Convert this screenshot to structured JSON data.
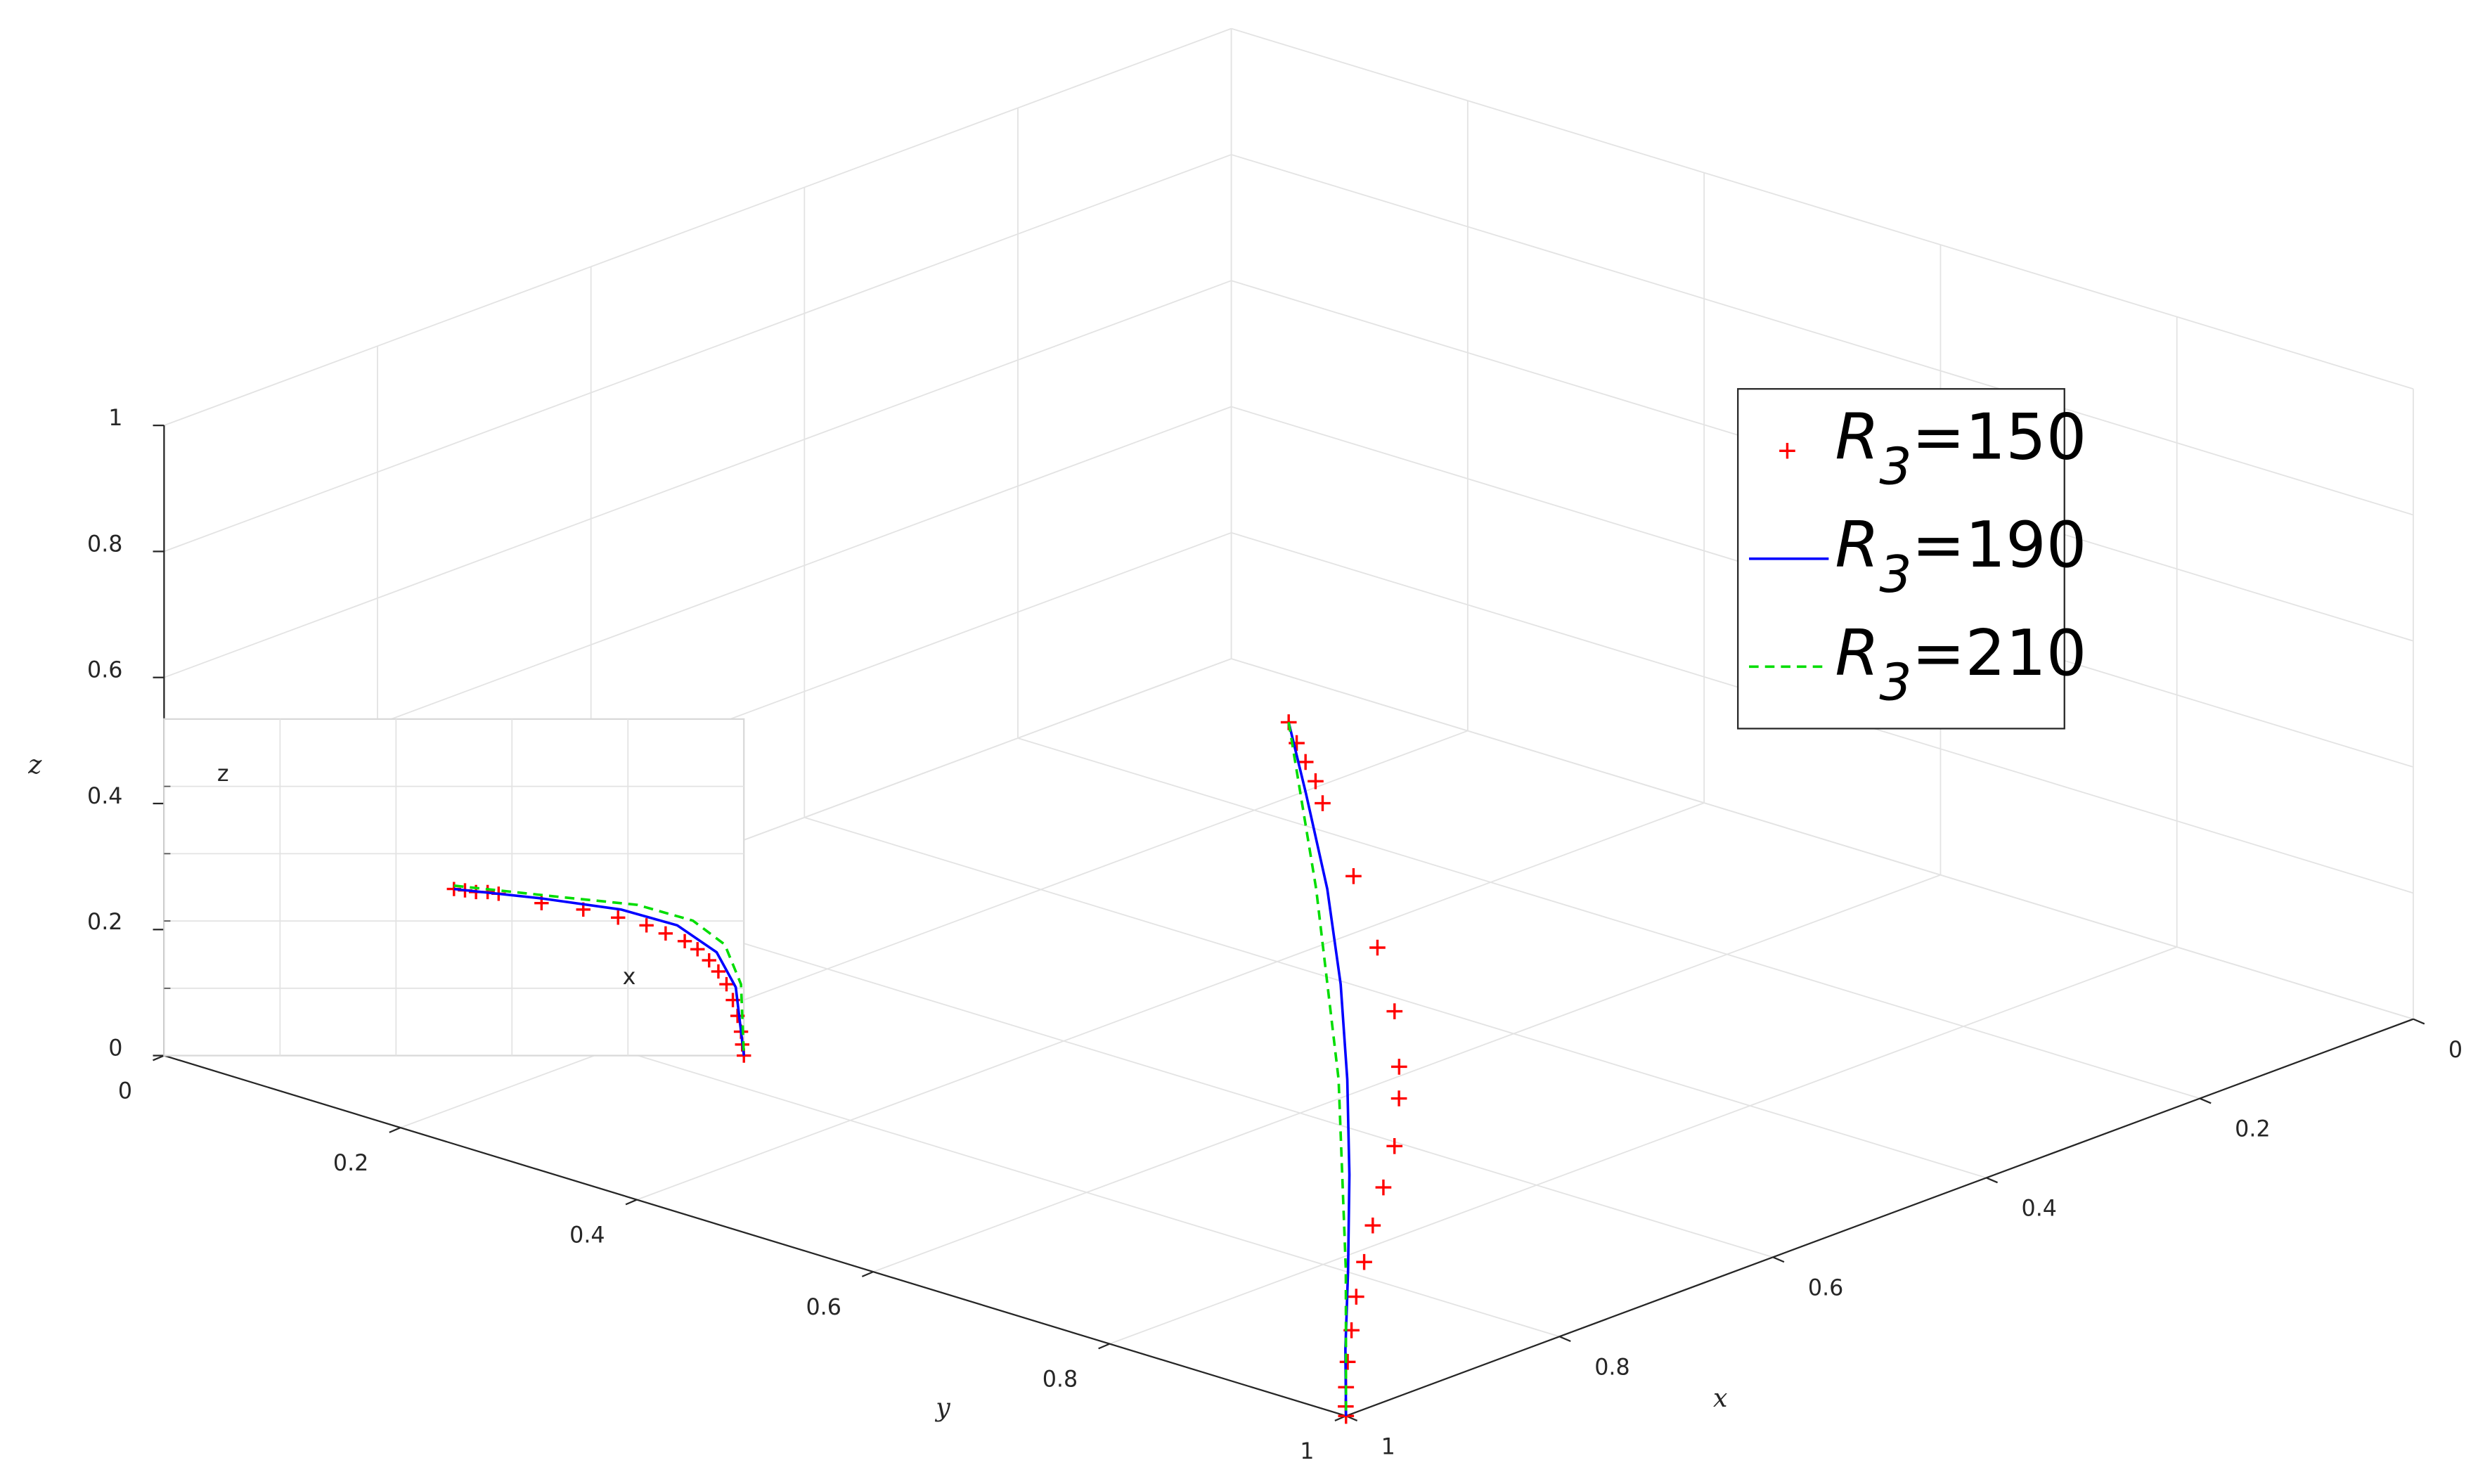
{
  "chart_data": [
    {
      "type": "line3d",
      "xlabel": "x",
      "ylabel": "y",
      "zlabel": "z",
      "xlim": [
        0,
        1
      ],
      "ylim": [
        0,
        1
      ],
      "zlim": [
        0,
        1
      ],
      "xticks": [
        0,
        0.2,
        0.4,
        0.6,
        0.8,
        1
      ],
      "yticks": [
        0,
        0.2,
        0.4,
        0.6,
        0.8,
        1
      ],
      "zticks": [
        0,
        0.2,
        0.4,
        0.6,
        0.8,
        1
      ],
      "grid": true,
      "legend": "upper right",
      "series": [
        {
          "name": "R3=150",
          "color": "#ff0000",
          "marker": "+",
          "linestyle": "none",
          "x": [
            0.5,
            0.508,
            0.513,
            0.518,
            0.528,
            0.581,
            0.635,
            0.681,
            0.721,
            0.73,
            0.763,
            0.79,
            0.821,
            0.849,
            0.883,
            0.914,
            0.942,
            0.969,
            0.987,
            1
          ],
          "y": [
            0.5,
            0.514,
            0.526,
            0.539,
            0.554,
            0.628,
            0.697,
            0.753,
            0.793,
            0.801,
            0.827,
            0.842,
            0.861,
            0.879,
            0.903,
            0.927,
            0.949,
            0.972,
            0.988,
            1
          ],
          "z": [
            0.5,
            0.48,
            0.46,
            0.44,
            0.42,
            0.38,
            0.34,
            0.3,
            0.26,
            0.22,
            0.18,
            0.14,
            0.11,
            0.08,
            0.06,
            0.04,
            0.02,
            0.01,
            0,
            0
          ]
        },
        {
          "name": "R3=190",
          "color": "#0000ff",
          "linestyle": "solid",
          "x": [
            0.5,
            0.548,
            0.61,
            0.675,
            0.743,
            0.813,
            0.884,
            0.943,
            1
          ],
          "y": [
            0.5,
            0.558,
            0.632,
            0.702,
            0.769,
            0.834,
            0.897,
            0.948,
            1
          ],
          "z": [
            0.5,
            0.45,
            0.38,
            0.31,
            0.24,
            0.17,
            0.1,
            0.04,
            0
          ]
        },
        {
          "name": "R3=210",
          "color": "#00dd00",
          "linestyle": "dashed",
          "x": [
            0.5,
            0.606,
            0.729,
            0.885,
            1
          ],
          "y": [
            0.5,
            0.619,
            0.749,
            0.896,
            1
          ],
          "z": [
            0.5,
            0.37,
            0.22,
            0.1,
            0
          ]
        }
      ]
    },
    {
      "type": "line",
      "xlabel": "x",
      "ylabel": "z",
      "xlim": [
        0,
        1
      ],
      "ylim": [
        0,
        1
      ],
      "xticks": [
        0.2,
        0.4,
        0.6,
        0.8
      ],
      "yticks": [
        0.2,
        0.4,
        0.6,
        0.8
      ],
      "grid": true,
      "series": [
        {
          "color": "#ff0000",
          "marker": "+",
          "linestyle": "none",
          "x": [
            0.5,
            0.519,
            0.538,
            0.558,
            0.577,
            0.651,
            0.723,
            0.783,
            0.832,
            0.865,
            0.898,
            0.92,
            0.94,
            0.956,
            0.97,
            0.981,
            0.989,
            0.995,
            0.997,
            1
          ],
          "values": [
            0.495,
            0.491,
            0.486,
            0.486,
            0.481,
            0.453,
            0.434,
            0.41,
            0.387,
            0.363,
            0.34,
            0.316,
            0.283,
            0.25,
            0.212,
            0.165,
            0.118,
            0.071,
            0.033,
            0
          ]
        },
        {
          "color": "#0000ff",
          "linestyle": "solid",
          "x": [
            0.5,
            0.651,
            0.788,
            0.885,
            0.953,
            0.986,
            1
          ],
          "values": [
            0.495,
            0.467,
            0.434,
            0.387,
            0.307,
            0.203,
            0
          ]
        },
        {
          "color": "#00dd00",
          "linestyle": "dashed",
          "x": [
            0.5,
            0.679,
            0.816,
            0.912,
            0.967,
            0.995,
            1
          ],
          "values": [
            0.505,
            0.472,
            0.448,
            0.401,
            0.33,
            0.212,
            0
          ]
        }
      ]
    }
  ]
}
